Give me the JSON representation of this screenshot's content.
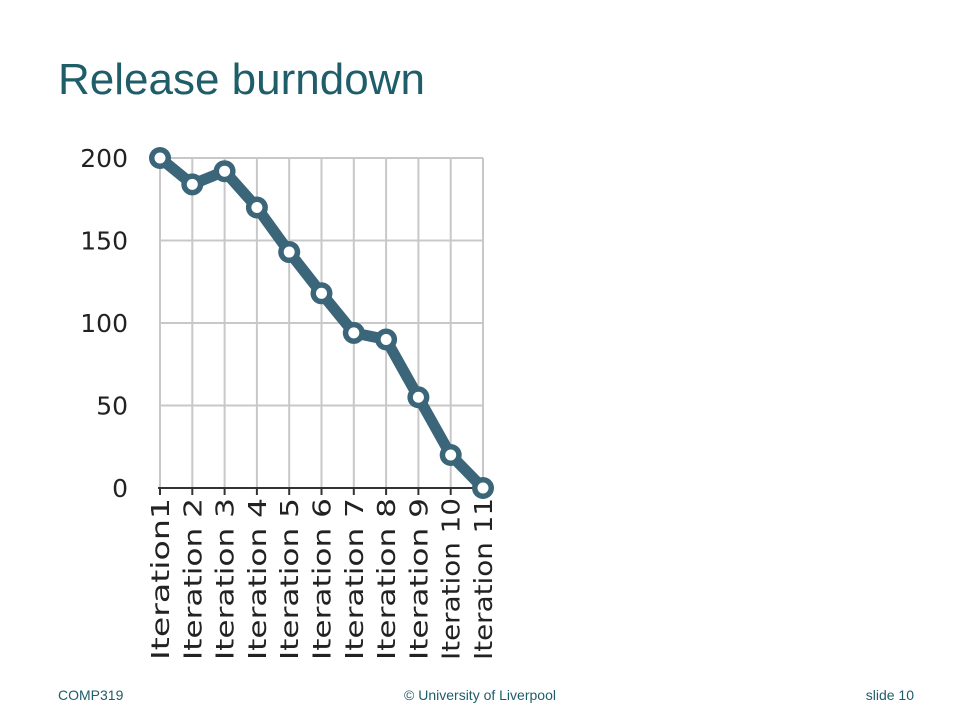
{
  "slide": {
    "title": "Release burndown"
  },
  "footer": {
    "course": "COMP319",
    "copyright": "© University of Liverpool",
    "slide_label": "slide  10"
  },
  "colors": {
    "title": "#1f5d68",
    "line": "#3b6578",
    "grid": "#c8c8c8",
    "axis": "#333333"
  },
  "chart_data": {
    "type": "line",
    "title": "",
    "xlabel": "",
    "ylabel": "",
    "categories": [
      "Iteration1",
      "Iteration 2",
      "Iteration 3",
      "Iteration 4",
      "Iteration 5",
      "Iteration 6",
      "Iteration 7",
      "Iteration 8",
      "Iteration 9",
      "Iteration 10",
      "Iteration 11"
    ],
    "values": [
      200,
      184,
      192,
      170,
      143,
      118,
      94,
      90,
      55,
      20,
      0
    ],
    "ylim": [
      0,
      200
    ],
    "yticks": [
      "0",
      "50",
      "100",
      "150",
      "200"
    ],
    "grid": true,
    "legend": "none",
    "markers": "hollow circles"
  }
}
